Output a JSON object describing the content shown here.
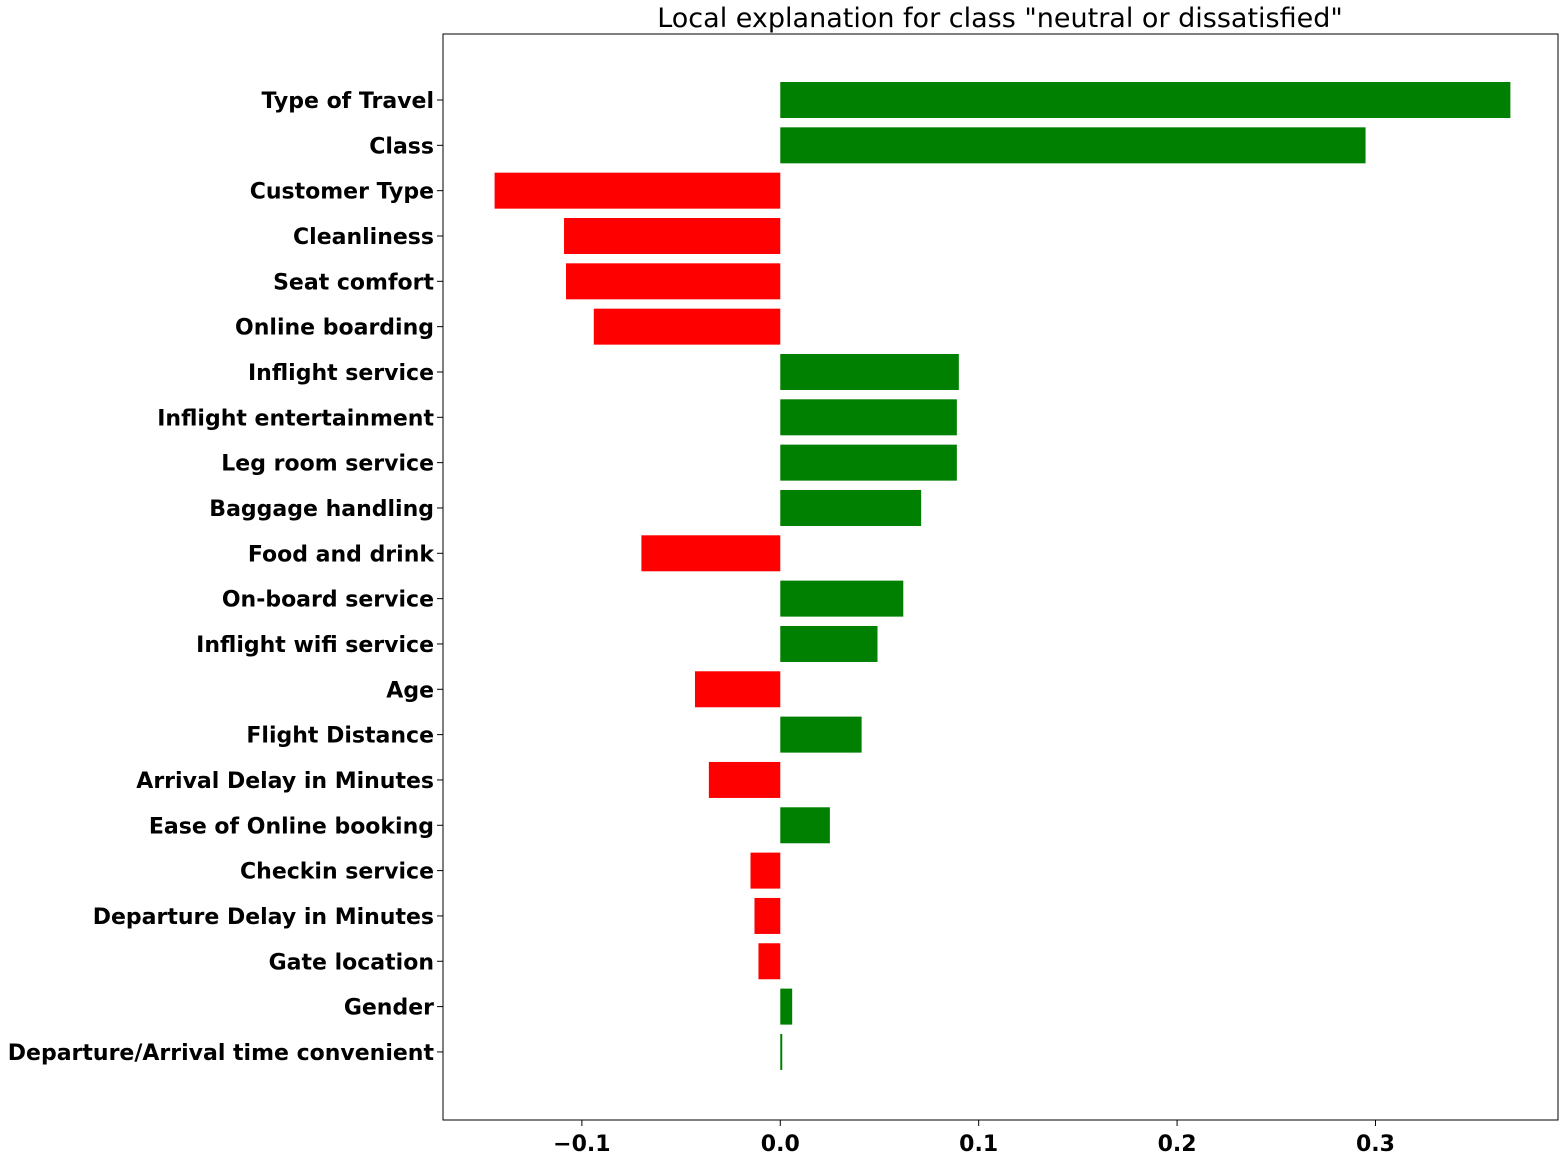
{
  "chart_data": {
    "type": "bar",
    "orientation": "horizontal",
    "title": "Local explanation for class \"neutral or dissatisfied\"",
    "xlabel": "",
    "ylabel": "",
    "xlim": [
      -0.17,
      0.392
    ],
    "xticks": [
      -0.1,
      0.0,
      0.1,
      0.2,
      0.3
    ],
    "xtick_labels": [
      "−0.1",
      "0.0",
      "0.1",
      "0.2",
      "0.3"
    ],
    "grid": false,
    "legend": "none",
    "colors": {
      "positive": "#008000",
      "negative": "#ff0000"
    },
    "categories": [
      "Type of Travel",
      "Class",
      "Customer Type",
      "Cleanliness",
      "Seat comfort",
      "Online boarding",
      "Inflight service",
      "Inflight entertainment",
      "Leg room service",
      "Baggage handling",
      "Food and drink",
      "On-board service",
      "Inflight wifi service",
      "Age",
      "Flight Distance",
      "Arrival Delay in Minutes",
      "Ease of Online booking",
      "Checkin service",
      "Departure Delay in Minutes",
      "Gate location",
      "Gender",
      "Departure/Arrival time convenient"
    ],
    "values": [
      0.368,
      0.295,
      -0.144,
      -0.109,
      -0.108,
      -0.094,
      0.09,
      0.089,
      0.089,
      0.071,
      -0.07,
      0.062,
      0.049,
      -0.043,
      0.041,
      -0.036,
      0.025,
      -0.015,
      -0.013,
      -0.011,
      0.006,
      0.001
    ]
  }
}
